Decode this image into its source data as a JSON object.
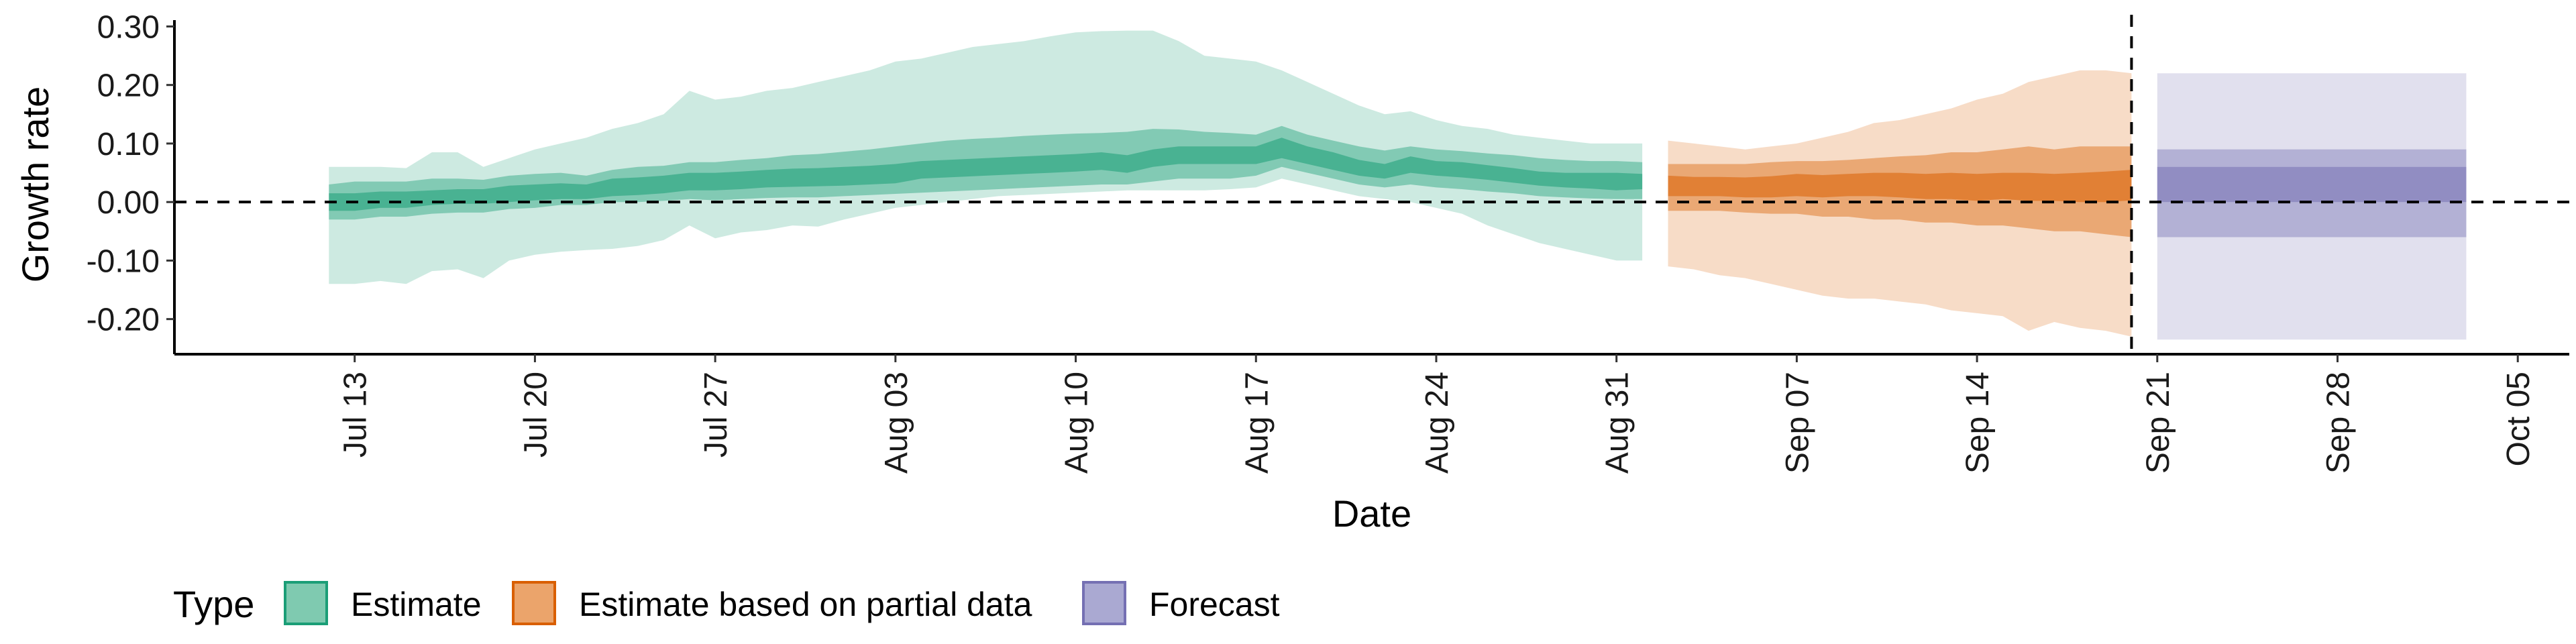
{
  "chart_data": {
    "type": "area",
    "xlabel": "Date",
    "ylabel": "Growth rate",
    "ylim": [
      -0.26,
      0.32
    ],
    "xlim": [
      "2020-07-06",
      "2020-10-07"
    ],
    "y_ticks": [
      {
        "value": 0.3,
        "label": "0.30"
      },
      {
        "value": 0.2,
        "label": "0.20"
      },
      {
        "value": 0.1,
        "label": "0.10"
      },
      {
        "value": 0.0,
        "label": "0.00"
      },
      {
        "value": -0.1,
        "label": "-0.10"
      },
      {
        "value": -0.2,
        "label": "-0.20"
      }
    ],
    "x_ticks": [
      {
        "date": "2020-07-13",
        "label": "Jul 13"
      },
      {
        "date": "2020-07-20",
        "label": "Jul 20"
      },
      {
        "date": "2020-07-27",
        "label": "Jul 27"
      },
      {
        "date": "2020-08-03",
        "label": "Aug 03"
      },
      {
        "date": "2020-08-10",
        "label": "Aug 10"
      },
      {
        "date": "2020-08-17",
        "label": "Aug 17"
      },
      {
        "date": "2020-08-24",
        "label": "Aug 24"
      },
      {
        "date": "2020-08-31",
        "label": "Aug 31"
      },
      {
        "date": "2020-09-07",
        "label": "Sep 07"
      },
      {
        "date": "2020-09-14",
        "label": "Sep 14"
      },
      {
        "date": "2020-09-21",
        "label": "Sep 21"
      },
      {
        "date": "2020-09-28",
        "label": "Sep 28"
      },
      {
        "date": "2020-10-05",
        "label": "Oct 05"
      }
    ],
    "hline_y": 0,
    "vline_date": "2020-09-20",
    "legend": {
      "title": "Type",
      "position": "bottom",
      "items": [
        {
          "label": "Estimate",
          "fill": "#7FCAB0",
          "border": "#1B9E77"
        },
        {
          "label": "Estimate based on partial data",
          "fill": "#EBA46B",
          "border": "#D95F02"
        },
        {
          "label": "Forecast",
          "fill": "#AAA9D2",
          "border": "#7570B3"
        }
      ]
    },
    "series": [
      {
        "name": "Estimate",
        "color": "#1B9E77",
        "start_date": "2020-07-12",
        "points": [
          {
            "date": "2020-07-12",
            "lo90": -0.14,
            "hi90": 0.06,
            "lo50": -0.03,
            "hi50": 0.03,
            "lo20": -0.015,
            "hi20": 0.015
          },
          {
            "date": "2020-07-13",
            "lo90": -0.14,
            "hi90": 0.06,
            "lo50": -0.03,
            "hi50": 0.035,
            "lo20": -0.015,
            "hi20": 0.015
          },
          {
            "date": "2020-07-14",
            "lo90": -0.135,
            "hi90": 0.06,
            "lo50": -0.025,
            "hi50": 0.035,
            "lo20": -0.01,
            "hi20": 0.018
          },
          {
            "date": "2020-07-15",
            "lo90": -0.14,
            "hi90": 0.058,
            "lo50": -0.025,
            "hi50": 0.035,
            "lo20": -0.01,
            "hi20": 0.018
          },
          {
            "date": "2020-07-16",
            "lo90": -0.118,
            "hi90": 0.085,
            "lo50": -0.02,
            "hi50": 0.04,
            "lo20": -0.005,
            "hi20": 0.02
          },
          {
            "date": "2020-07-17",
            "lo90": -0.115,
            "hi90": 0.085,
            "lo50": -0.018,
            "hi50": 0.04,
            "lo20": -0.003,
            "hi20": 0.022
          },
          {
            "date": "2020-07-18",
            "lo90": -0.13,
            "hi90": 0.06,
            "lo50": -0.018,
            "hi50": 0.038,
            "lo20": -0.003,
            "hi20": 0.022
          },
          {
            "date": "2020-07-19",
            "lo90": -0.1,
            "hi90": 0.075,
            "lo50": -0.012,
            "hi50": 0.045,
            "lo20": 0.0,
            "hi20": 0.028
          },
          {
            "date": "2020-07-20",
            "lo90": -0.09,
            "hi90": 0.09,
            "lo50": -0.01,
            "hi50": 0.048,
            "lo20": 0.003,
            "hi20": 0.03
          },
          {
            "date": "2020-07-21",
            "lo90": -0.085,
            "hi90": 0.1,
            "lo50": -0.005,
            "hi50": 0.05,
            "lo20": 0.005,
            "hi20": 0.032
          },
          {
            "date": "2020-07-22",
            "lo90": -0.082,
            "hi90": 0.11,
            "lo50": -0.005,
            "hi50": 0.045,
            "lo20": 0.005,
            "hi20": 0.03
          },
          {
            "date": "2020-07-23",
            "lo90": -0.08,
            "hi90": 0.125,
            "lo50": 0.0,
            "hi50": 0.055,
            "lo20": 0.01,
            "hi20": 0.04
          },
          {
            "date": "2020-07-24",
            "lo90": -0.075,
            "hi90": 0.135,
            "lo50": 0.0,
            "hi50": 0.06,
            "lo20": 0.012,
            "hi20": 0.042
          },
          {
            "date": "2020-07-25",
            "lo90": -0.065,
            "hi90": 0.15,
            "lo50": 0.002,
            "hi50": 0.062,
            "lo20": 0.015,
            "hi20": 0.045
          },
          {
            "date": "2020-07-26",
            "lo90": -0.04,
            "hi90": 0.19,
            "lo50": 0.005,
            "hi50": 0.068,
            "lo20": 0.02,
            "hi20": 0.05
          },
          {
            "date": "2020-07-27",
            "lo90": -0.062,
            "hi90": 0.175,
            "lo50": 0.003,
            "hi50": 0.068,
            "lo20": 0.02,
            "hi20": 0.05
          },
          {
            "date": "2020-07-28",
            "lo90": -0.052,
            "hi90": 0.18,
            "lo50": 0.005,
            "hi50": 0.072,
            "lo20": 0.022,
            "hi20": 0.052
          },
          {
            "date": "2020-07-29",
            "lo90": -0.048,
            "hi90": 0.19,
            "lo50": 0.007,
            "hi50": 0.075,
            "lo20": 0.025,
            "hi20": 0.055
          },
          {
            "date": "2020-07-30",
            "lo90": -0.04,
            "hi90": 0.195,
            "lo50": 0.008,
            "hi50": 0.08,
            "lo20": 0.026,
            "hi20": 0.057
          },
          {
            "date": "2020-07-31",
            "lo90": -0.042,
            "hi90": 0.205,
            "lo50": 0.008,
            "hi50": 0.082,
            "lo20": 0.027,
            "hi20": 0.058
          },
          {
            "date": "2020-08-01",
            "lo90": -0.03,
            "hi90": 0.215,
            "lo50": 0.01,
            "hi50": 0.086,
            "lo20": 0.028,
            "hi20": 0.06
          },
          {
            "date": "2020-08-02",
            "lo90": -0.02,
            "hi90": 0.225,
            "lo50": 0.012,
            "hi50": 0.09,
            "lo20": 0.03,
            "hi20": 0.062
          },
          {
            "date": "2020-08-03",
            "lo90": -0.01,
            "hi90": 0.24,
            "lo50": 0.014,
            "hi50": 0.095,
            "lo20": 0.032,
            "hi20": 0.065
          },
          {
            "date": "2020-08-04",
            "lo90": -0.005,
            "hi90": 0.245,
            "lo50": 0.016,
            "hi50": 0.1,
            "lo20": 0.04,
            "hi20": 0.07
          },
          {
            "date": "2020-08-05",
            "lo90": 0.0,
            "hi90": 0.255,
            "lo50": 0.018,
            "hi50": 0.105,
            "lo20": 0.042,
            "hi20": 0.072
          },
          {
            "date": "2020-08-06",
            "lo90": 0.005,
            "hi90": 0.265,
            "lo50": 0.02,
            "hi50": 0.108,
            "lo20": 0.044,
            "hi20": 0.074
          },
          {
            "date": "2020-08-07",
            "lo90": 0.01,
            "hi90": 0.27,
            "lo50": 0.022,
            "hi50": 0.11,
            "lo20": 0.046,
            "hi20": 0.076
          },
          {
            "date": "2020-08-08",
            "lo90": 0.012,
            "hi90": 0.275,
            "lo50": 0.024,
            "hi50": 0.113,
            "lo20": 0.048,
            "hi20": 0.078
          },
          {
            "date": "2020-08-09",
            "lo90": 0.014,
            "hi90": 0.283,
            "lo50": 0.026,
            "hi50": 0.115,
            "lo20": 0.05,
            "hi20": 0.08
          },
          {
            "date": "2020-08-10",
            "lo90": 0.016,
            "hi90": 0.29,
            "lo50": 0.028,
            "hi50": 0.117,
            "lo20": 0.052,
            "hi20": 0.082
          },
          {
            "date": "2020-08-11",
            "lo90": 0.018,
            "hi90": 0.292,
            "lo50": 0.03,
            "hi50": 0.118,
            "lo20": 0.055,
            "hi20": 0.085
          },
          {
            "date": "2020-08-12",
            "lo90": 0.02,
            "hi90": 0.293,
            "lo50": 0.03,
            "hi50": 0.12,
            "lo20": 0.05,
            "hi20": 0.08
          },
          {
            "date": "2020-08-13",
            "lo90": 0.02,
            "hi90": 0.293,
            "lo50": 0.035,
            "hi50": 0.125,
            "lo20": 0.06,
            "hi20": 0.09
          },
          {
            "date": "2020-08-14",
            "lo90": 0.02,
            "hi90": 0.275,
            "lo50": 0.04,
            "hi50": 0.124,
            "lo20": 0.065,
            "hi20": 0.095
          },
          {
            "date": "2020-08-15",
            "lo90": 0.02,
            "hi90": 0.25,
            "lo50": 0.04,
            "hi50": 0.12,
            "lo20": 0.065,
            "hi20": 0.095
          },
          {
            "date": "2020-08-16",
            "lo90": 0.022,
            "hi90": 0.245,
            "lo50": 0.04,
            "hi50": 0.118,
            "lo20": 0.065,
            "hi20": 0.095
          },
          {
            "date": "2020-08-17",
            "lo90": 0.025,
            "hi90": 0.24,
            "lo50": 0.045,
            "hi50": 0.115,
            "lo20": 0.065,
            "hi20": 0.095
          },
          {
            "date": "2020-08-18",
            "lo90": 0.04,
            "hi90": 0.225,
            "lo50": 0.06,
            "hi50": 0.13,
            "lo20": 0.075,
            "hi20": 0.11
          },
          {
            "date": "2020-08-19",
            "lo90": 0.03,
            "hi90": 0.205,
            "lo50": 0.05,
            "hi50": 0.115,
            "lo20": 0.065,
            "hi20": 0.095
          },
          {
            "date": "2020-08-20",
            "lo90": 0.02,
            "hi90": 0.185,
            "lo50": 0.04,
            "hi50": 0.105,
            "lo20": 0.055,
            "hi20": 0.085
          },
          {
            "date": "2020-08-21",
            "lo90": 0.01,
            "hi90": 0.165,
            "lo50": 0.03,
            "hi50": 0.095,
            "lo20": 0.045,
            "hi20": 0.072
          },
          {
            "date": "2020-08-22",
            "lo90": 0.005,
            "hi90": 0.15,
            "lo50": 0.025,
            "hi50": 0.088,
            "lo20": 0.04,
            "hi20": 0.065
          },
          {
            "date": "2020-08-23",
            "lo90": 0.0,
            "hi90": 0.155,
            "lo50": 0.03,
            "hi50": 0.095,
            "lo20": 0.05,
            "hi20": 0.078
          },
          {
            "date": "2020-08-24",
            "lo90": -0.01,
            "hi90": 0.14,
            "lo50": 0.025,
            "hi50": 0.09,
            "lo20": 0.045,
            "hi20": 0.07
          },
          {
            "date": "2020-08-25",
            "lo90": -0.02,
            "hi90": 0.13,
            "lo50": 0.022,
            "hi50": 0.087,
            "lo20": 0.042,
            "hi20": 0.068
          },
          {
            "date": "2020-08-26",
            "lo90": -0.04,
            "hi90": 0.125,
            "lo50": 0.018,
            "hi50": 0.083,
            "lo20": 0.038,
            "hi20": 0.063
          },
          {
            "date": "2020-08-27",
            "lo90": -0.055,
            "hi90": 0.115,
            "lo50": 0.015,
            "hi50": 0.08,
            "lo20": 0.033,
            "hi20": 0.058
          },
          {
            "date": "2020-08-28",
            "lo90": -0.07,
            "hi90": 0.11,
            "lo50": 0.01,
            "hi50": 0.075,
            "lo20": 0.028,
            "hi20": 0.052
          },
          {
            "date": "2020-08-29",
            "lo90": -0.08,
            "hi90": 0.105,
            "lo50": 0.008,
            "hi50": 0.072,
            "lo20": 0.025,
            "hi20": 0.05
          },
          {
            "date": "2020-08-30",
            "lo90": -0.09,
            "hi90": 0.1,
            "lo50": 0.006,
            "hi50": 0.07,
            "lo20": 0.023,
            "hi20": 0.05
          },
          {
            "date": "2020-08-31",
            "lo90": -0.1,
            "hi90": 0.1,
            "lo50": 0.005,
            "hi50": 0.07,
            "lo20": 0.02,
            "hi20": 0.05
          },
          {
            "date": "2020-09-01",
            "lo90": -0.1,
            "hi90": 0.1,
            "lo50": 0.005,
            "hi50": 0.068,
            "lo20": 0.022,
            "hi20": 0.048
          }
        ]
      },
      {
        "name": "Estimate based on partial data",
        "color": "#D95F02",
        "start_date": "2020-09-02",
        "points": [
          {
            "date": "2020-09-02",
            "lo90": -0.11,
            "hi90": 0.105,
            "lo50": -0.015,
            "hi50": 0.065,
            "lo20": 0.01,
            "hi20": 0.045
          },
          {
            "date": "2020-09-03",
            "lo90": -0.115,
            "hi90": 0.1,
            "lo50": -0.015,
            "hi50": 0.065,
            "lo20": 0.01,
            "hi20": 0.043
          },
          {
            "date": "2020-09-04",
            "lo90": -0.125,
            "hi90": 0.095,
            "lo50": -0.015,
            "hi50": 0.065,
            "lo20": 0.01,
            "hi20": 0.043
          },
          {
            "date": "2020-09-05",
            "lo90": -0.13,
            "hi90": 0.09,
            "lo50": -0.018,
            "hi50": 0.065,
            "lo20": 0.008,
            "hi20": 0.042
          },
          {
            "date": "2020-09-06",
            "lo90": -0.14,
            "hi90": 0.095,
            "lo50": -0.02,
            "hi50": 0.068,
            "lo20": 0.008,
            "hi20": 0.044
          },
          {
            "date": "2020-09-07",
            "lo90": -0.15,
            "hi90": 0.1,
            "lo50": -0.02,
            "hi50": 0.07,
            "lo20": 0.01,
            "hi20": 0.048
          },
          {
            "date": "2020-09-08",
            "lo90": -0.16,
            "hi90": 0.11,
            "lo50": -0.025,
            "hi50": 0.07,
            "lo20": 0.008,
            "hi20": 0.046
          },
          {
            "date": "2020-09-09",
            "lo90": -0.165,
            "hi90": 0.12,
            "lo50": -0.025,
            "hi50": 0.072,
            "lo20": 0.01,
            "hi20": 0.048
          },
          {
            "date": "2020-09-10",
            "lo90": -0.165,
            "hi90": 0.135,
            "lo50": -0.03,
            "hi50": 0.075,
            "lo20": 0.01,
            "hi20": 0.05
          },
          {
            "date": "2020-09-11",
            "lo90": -0.17,
            "hi90": 0.14,
            "lo50": -0.03,
            "hi50": 0.078,
            "lo20": 0.008,
            "hi20": 0.05
          },
          {
            "date": "2020-09-12",
            "lo90": -0.175,
            "hi90": 0.15,
            "lo50": -0.035,
            "hi50": 0.08,
            "lo20": 0.005,
            "hi20": 0.048
          },
          {
            "date": "2020-09-13",
            "lo90": -0.185,
            "hi90": 0.16,
            "lo50": -0.035,
            "hi50": 0.085,
            "lo20": 0.005,
            "hi20": 0.05
          },
          {
            "date": "2020-09-14",
            "lo90": -0.19,
            "hi90": 0.175,
            "lo50": -0.04,
            "hi50": 0.085,
            "lo20": 0.002,
            "hi20": 0.048
          },
          {
            "date": "2020-09-15",
            "lo90": -0.195,
            "hi90": 0.185,
            "lo50": -0.04,
            "hi50": 0.09,
            "lo20": 0.005,
            "hi20": 0.05
          },
          {
            "date": "2020-09-16",
            "lo90": -0.22,
            "hi90": 0.205,
            "lo50": -0.045,
            "hi50": 0.095,
            "lo20": 0.002,
            "hi20": 0.05
          },
          {
            "date": "2020-09-17",
            "lo90": -0.205,
            "hi90": 0.215,
            "lo50": -0.05,
            "hi50": 0.09,
            "lo20": 0.002,
            "hi20": 0.048
          },
          {
            "date": "2020-09-18",
            "lo90": -0.215,
            "hi90": 0.225,
            "lo50": -0.05,
            "hi50": 0.095,
            "lo20": 0.0,
            "hi20": 0.05
          },
          {
            "date": "2020-09-19",
            "lo90": -0.22,
            "hi90": 0.225,
            "lo50": -0.055,
            "hi50": 0.095,
            "lo20": 0.0,
            "hi20": 0.052
          },
          {
            "date": "2020-09-20",
            "lo90": -0.23,
            "hi90": 0.22,
            "lo50": -0.06,
            "hi50": 0.095,
            "lo20": 0.003,
            "hi20": 0.055
          }
        ]
      },
      {
        "name": "Forecast",
        "color": "#7570B3",
        "start_date": "2020-09-21",
        "end_date": "2020-10-03",
        "lo90": -0.235,
        "hi90": 0.22,
        "lo50": -0.06,
        "hi50": 0.09,
        "lo20": 0.0,
        "hi20": 0.06
      }
    ]
  }
}
